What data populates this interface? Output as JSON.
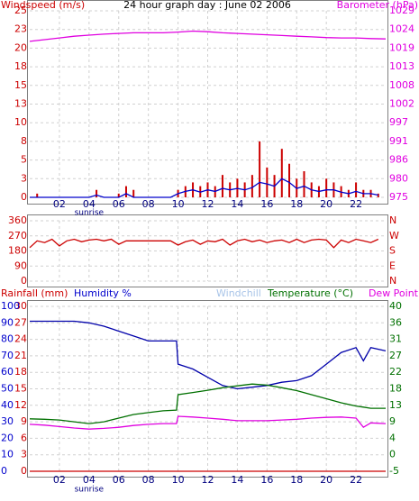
{
  "chart_data": [
    {
      "type": "combo",
      "title": "24 hour graph day : June 02 2006",
      "ylabel": "Windspeed (m/s)",
      "ylabel_color": "#cc0000",
      "y2label": "Barometer (hPa)",
      "y2label_color": "#e000e0",
      "xlim": [
        0,
        24
      ],
      "xticks": [
        {
          "value": 2,
          "label": "02"
        },
        {
          "value": 4,
          "label": "04"
        },
        {
          "value": 6,
          "label": "06"
        },
        {
          "value": 8,
          "label": "08"
        },
        10,
        12,
        14,
        16,
        18,
        20,
        22
      ],
      "annotations": [
        {
          "text": "sunrise",
          "x": 4
        }
      ],
      "ylim": [
        0,
        25
      ],
      "yticks": [
        0,
        {
          "value": 2.5,
          "label": "3"
        },
        5,
        {
          "value": 7.5,
          "label": "8"
        },
        10,
        {
          "value": 12.5,
          "label": "13"
        },
        15,
        {
          "value": 17.5,
          "label": "18"
        },
        20,
        {
          "value": 22.5,
          "label": "23"
        },
        25
      ],
      "ytick_color": "#cc0000",
      "y2lim": [
        975,
        1029.4
      ],
      "y2ticks": [
        975,
        {
          "value": 980.44,
          "label": "980"
        },
        {
          "value": 985.88,
          "label": "986"
        },
        {
          "value": 991.32,
          "label": "991"
        },
        {
          "value": 996.76,
          "label": "997"
        },
        {
          "value": 1002.2,
          "label": "1002"
        },
        {
          "value": 1007.64,
          "label": "1008"
        },
        {
          "value": 1013.08,
          "label": "1013"
        },
        {
          "value": 1018.52,
          "label": "1019"
        },
        {
          "value": 1023.96,
          "label": "1024"
        },
        {
          "value": 1029.4,
          "label": "1029"
        }
      ],
      "y2tick_color": "#e000e0",
      "grid": true,
      "x": [
        0,
        0.5,
        1,
        1.5,
        2,
        2.5,
        3,
        3.5,
        4,
        4.5,
        5,
        5.5,
        6,
        6.5,
        7,
        7.5,
        8,
        8.5,
        9,
        9.5,
        10,
        10.5,
        11,
        11.5,
        12,
        12.5,
        13,
        13.5,
        14,
        14.5,
        15,
        15.5,
        16,
        16.5,
        17,
        17.5,
        18,
        18.5,
        19,
        19.5,
        20,
        20.5,
        21,
        21.5,
        22,
        22.5,
        23,
        23.5
      ],
      "series": [
        {
          "type": "bar",
          "color": "#cc0000",
          "axis": "y",
          "values": [
            0,
            0.5,
            0,
            0,
            0,
            0,
            0,
            0,
            0,
            1,
            0,
            0,
            0.5,
            1.5,
            1,
            0,
            0,
            0,
            0,
            0,
            1,
            1.5,
            2,
            1.5,
            2,
            1.5,
            3,
            2,
            2.5,
            2,
            3,
            7.5,
            4,
            3,
            6.5,
            4.5,
            2.5,
            3.5,
            2,
            1.5,
            2.5,
            2,
            1.5,
            1,
            2,
            1,
            1,
            0.5
          ]
        },
        {
          "type": "line",
          "color": "#0000cc",
          "axis": "y",
          "values": [
            0,
            0,
            0,
            0,
            0,
            0,
            0,
            0,
            0,
            0.3,
            0,
            0,
            0,
            0.5,
            0,
            0,
            0,
            0,
            0,
            0,
            0.5,
            0.8,
            1,
            0.7,
            1,
            0.8,
            1.2,
            1,
            1.2,
            1,
            1.3,
            2,
            1.8,
            1.5,
            2.5,
            2,
            1.2,
            1.5,
            1,
            0.8,
            1,
            1,
            0.7,
            0.5,
            0.8,
            0.5,
            0.5,
            0.3
          ]
        },
        {
          "type": "line",
          "color": "#e000e0",
          "axis": "y2",
          "x": [
            0,
            1,
            2,
            3,
            4,
            5,
            6,
            7,
            8,
            9,
            10,
            11,
            12,
            13,
            14,
            15,
            16,
            17,
            18,
            19,
            20,
            21,
            22,
            23,
            24
          ],
          "values": [
            1020.5,
            1021,
            1021.5,
            1022,
            1022.3,
            1022.6,
            1022.8,
            1023,
            1023,
            1023,
            1023.2,
            1023.5,
            1023.3,
            1023,
            1022.8,
            1022.6,
            1022.4,
            1022.2,
            1022,
            1021.8,
            1021.6,
            1021.5,
            1021.5,
            1021.3,
            1021.2
          ]
        }
      ]
    },
    {
      "type": "line",
      "xlim": [
        0,
        24
      ],
      "xticks": [
        {
          "value": 2,
          "label": "02"
        },
        {
          "value": 4,
          "label": "04"
        },
        {
          "value": 6,
          "label": "06"
        },
        {
          "value": 8,
          "label": "08"
        },
        10,
        12,
        14,
        16,
        18,
        20,
        22
      ],
      "ylim": [
        0,
        360
      ],
      "yticks": [
        0,
        90,
        180,
        270,
        360
      ],
      "ytick_color": "#cc0000",
      "y2lim": [
        0,
        360
      ],
      "y2ticks": [
        {
          "value": 0,
          "label": "N"
        },
        {
          "value": 90,
          "label": "E"
        },
        {
          "value": 180,
          "label": "S"
        },
        {
          "value": 270,
          "label": "W"
        },
        {
          "value": 360,
          "label": "N"
        }
      ],
      "y2tick_color": "#cc0000",
      "grid": true,
      "x": [
        0,
        0.5,
        1,
        1.5,
        2,
        2.5,
        3,
        3.5,
        4,
        4.5,
        5,
        5.5,
        6,
        6.5,
        7,
        7.5,
        8,
        8.5,
        9,
        9.5,
        10,
        10.5,
        11,
        11.5,
        12,
        12.5,
        13,
        13.5,
        14,
        14.5,
        15,
        15.5,
        16,
        16.5,
        17,
        17.5,
        18,
        18.5,
        19,
        19.5,
        20,
        20.5,
        21,
        21.5,
        22,
        22.5,
        23,
        23.5
      ],
      "series": [
        {
          "type": "line",
          "color": "#cc0000",
          "axis": "y",
          "values": [
            200,
            240,
            230,
            250,
            210,
            240,
            250,
            235,
            245,
            250,
            240,
            250,
            220,
            240,
            240,
            240,
            240,
            240,
            240,
            240,
            215,
            235,
            245,
            220,
            240,
            235,
            250,
            215,
            240,
            250,
            235,
            245,
            230,
            240,
            245,
            230,
            250,
            230,
            245,
            250,
            245,
            200,
            245,
            230,
            250,
            240,
            230,
            250
          ]
        }
      ]
    },
    {
      "type": "line",
      "ylabel": "Rainfall (mm)",
      "ylabel_color": "#cc0000",
      "y3label": "Humidity %",
      "y3label_color": "#0000cc",
      "y2label": "Temperature (°C)",
      "y2label_color": "#007000",
      "header_labels": [
        {
          "text": "Windchill",
          "color": "#a8c4e8"
        }
      ],
      "xlim": [
        0,
        24
      ],
      "xticks": [
        {
          "value": 2,
          "label": "02"
        },
        {
          "value": 4,
          "label": "04"
        },
        {
          "value": 6,
          "label": "06"
        },
        {
          "value": 8,
          "label": "08"
        },
        10,
        12,
        14,
        16,
        18,
        20,
        22
      ],
      "annotations": [
        {
          "text": "sunrise",
          "x": 4
        }
      ],
      "ylim": [
        0,
        30
      ],
      "yticks": [
        0,
        3,
        6,
        9,
        12,
        15,
        18,
        21,
        24,
        27,
        30
      ],
      "ytick_color": "#cc0000",
      "y3lim": [
        0,
        100
      ],
      "y3ticks": [
        0,
        10,
        20,
        30,
        40,
        50,
        60,
        70,
        80,
        90,
        100
      ],
      "y3tick_color": "#0000cc",
      "y2lim": [
        -5,
        40
      ],
      "y2ticks": [
        -5,
        {
          "value": -0.5,
          "label": "0"
        },
        4,
        {
          "value": 8.5,
          "label": "9"
        },
        13,
        {
          "value": 17.5,
          "label": "18"
        },
        22,
        {
          "value": 26.5,
          "label": "27"
        },
        31,
        {
          "value": 35.5,
          "label": "36"
        },
        40
      ],
      "y2tick_color": "#007000",
      "grid": true,
      "x": [
        0,
        1,
        2,
        3,
        4,
        5,
        6,
        7,
        8,
        9,
        9.9,
        10,
        11,
        12,
        13,
        14,
        15,
        16,
        17,
        18,
        19,
        20,
        21,
        22,
        22.5,
        23,
        24
      ],
      "series": [
        {
          "type": "line",
          "color": "#cc0000",
          "axis": "y",
          "values": [
            0,
            0,
            0,
            0,
            0,
            0,
            0,
            0,
            0,
            0,
            0,
            0,
            0,
            0,
            0,
            0,
            0,
            0,
            0,
            0,
            0,
            0,
            0,
            0,
            0,
            0,
            0
          ]
        },
        {
          "type": "line",
          "color": "#0000aa",
          "axis": "y3",
          "values": [
            91,
            91,
            91,
            91,
            90,
            88,
            85,
            82,
            79,
            79,
            79,
            65,
            62,
            57,
            52,
            50,
            51,
            52,
            54,
            55,
            58,
            65,
            72,
            75,
            67,
            75,
            73
          ]
        },
        {
          "type": "line",
          "color": "#007000",
          "axis": "y2",
          "values": [
            9.3,
            9.2,
            9,
            8.5,
            8,
            8.5,
            9.5,
            10.5,
            11,
            11.5,
            11.7,
            15.9,
            16.5,
            17.1,
            17.8,
            18.3,
            18.8,
            18.5,
            17.8,
            17,
            15.9,
            14.8,
            13.7,
            12.8,
            12.5,
            12.2,
            12.2
          ]
        },
        {
          "type": "line",
          "name": "Dew Point",
          "color": "#e000e0",
          "axis": "y2",
          "values": [
            7.8,
            7.6,
            7.2,
            6.8,
            6.5,
            6.7,
            7,
            7.5,
            7.8,
            8,
            8,
            10,
            9.8,
            9.5,
            9.2,
            8.8,
            8.8,
            8.8,
            9,
            9.2,
            9.5,
            9.7,
            9.8,
            9.5,
            7,
            8.2,
            8
          ]
        }
      ]
    }
  ]
}
